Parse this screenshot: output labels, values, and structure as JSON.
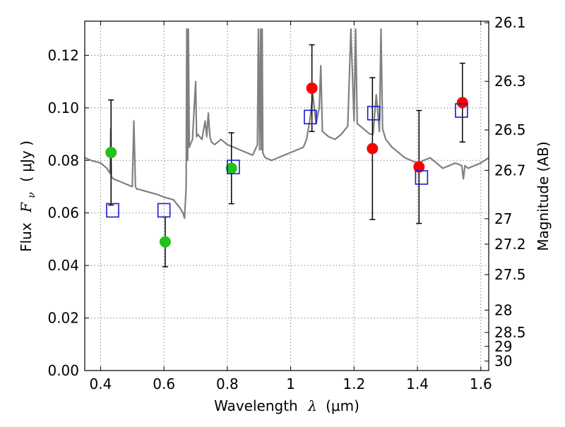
{
  "chart_data": {
    "type": "scatter",
    "xlabel_prefix": "Wavelength",
    "xlabel_symbol": "λ",
    "xlabel_unit": "(μm)",
    "ylabel_left_prefix": "Flux",
    "ylabel_left_symbol": "F",
    "ylabel_left_subscript": "ν",
    "ylabel_left_unit": "( μJy )",
    "ylabel_right": "Magnitude (AB)",
    "xlim": [
      0.35,
      1.625
    ],
    "ylim": [
      0.0,
      0.133
    ],
    "grid": true,
    "x_ticks": [
      0.4,
      0.6,
      0.8,
      1.0,
      1.2,
      1.4,
      1.6
    ],
    "x_tick_labels": [
      "0.4",
      "0.6",
      "0.8",
      "1",
      "1.2",
      "1.4",
      "1.6"
    ],
    "y_ticks": [
      0.0,
      0.02,
      0.04,
      0.06,
      0.08,
      0.1,
      0.12
    ],
    "y_tick_labels": [
      "0.00",
      "0.02",
      "0.04",
      "0.06",
      "0.08",
      "0.10",
      "0.12"
    ],
    "right_ticks": [
      {
        "label": "26.1",
        "flux": 0.1324
      },
      {
        "label": "26.3",
        "flux": 0.1101
      },
      {
        "label": "26.5",
        "flux": 0.0916
      },
      {
        "label": "26.7",
        "flux": 0.0762
      },
      {
        "label": "27",
        "flux": 0.0578
      },
      {
        "label": "27.2",
        "flux": 0.0481
      },
      {
        "label": "27.5",
        "flux": 0.0365
      },
      {
        "label": "28",
        "flux": 0.023
      },
      {
        "label": "28.5",
        "flux": 0.0145
      },
      {
        "label": "29",
        "flux": 0.0092
      },
      {
        "label": "30",
        "flux": 0.0036
      }
    ],
    "spectrum": {
      "color": "#808080",
      "x": [
        0.35,
        0.37,
        0.4,
        0.42,
        0.43,
        0.432,
        0.434,
        0.44,
        0.46,
        0.48,
        0.5,
        0.505,
        0.51,
        0.515,
        0.52,
        0.55,
        0.58,
        0.6,
        0.63,
        0.65,
        0.66,
        0.665,
        0.67,
        0.672,
        0.675,
        0.677,
        0.68,
        0.69,
        0.7,
        0.703,
        0.706,
        0.72,
        0.73,
        0.735,
        0.74,
        0.745,
        0.75,
        0.76,
        0.77,
        0.78,
        0.79,
        0.8,
        0.82,
        0.84,
        0.86,
        0.88,
        0.895,
        0.898,
        0.902,
        0.905,
        0.908,
        0.91,
        0.912,
        0.915,
        0.92,
        0.94,
        0.96,
        0.98,
        1.0,
        1.02,
        1.04,
        1.05,
        1.06,
        1.07,
        1.08,
        1.09,
        1.095,
        1.1,
        1.12,
        1.14,
        1.16,
        1.18,
        1.19,
        1.2,
        1.205,
        1.21,
        1.22,
        1.23,
        1.24,
        1.25,
        1.26,
        1.27,
        1.28,
        1.285,
        1.29,
        1.3,
        1.32,
        1.34,
        1.36,
        1.38,
        1.4,
        1.42,
        1.44,
        1.46,
        1.48,
        1.5,
        1.52,
        1.54,
        1.545,
        1.55,
        1.56,
        1.58,
        1.6,
        1.625
      ],
      "y": [
        0.081,
        0.08,
        0.079,
        0.077,
        0.075,
        0.092,
        0.074,
        0.073,
        0.072,
        0.071,
        0.07,
        0.095,
        0.07,
        0.069,
        0.069,
        0.068,
        0.067,
        0.066,
        0.065,
        0.062,
        0.06,
        0.058,
        0.07,
        0.13,
        0.08,
        0.13,
        0.085,
        0.088,
        0.11,
        0.089,
        0.09,
        0.088,
        0.095,
        0.089,
        0.098,
        0.089,
        0.087,
        0.086,
        0.087,
        0.088,
        0.087,
        0.086,
        0.085,
        0.084,
        0.083,
        0.082,
        0.086,
        0.13,
        0.084,
        0.13,
        0.084,
        0.13,
        0.083,
        0.082,
        0.081,
        0.08,
        0.081,
        0.082,
        0.083,
        0.084,
        0.085,
        0.088,
        0.095,
        0.105,
        0.094,
        0.1,
        0.116,
        0.091,
        0.089,
        0.088,
        0.09,
        0.093,
        0.13,
        0.095,
        0.13,
        0.094,
        0.093,
        0.092,
        0.091,
        0.09,
        0.09,
        0.105,
        0.091,
        0.13,
        0.092,
        0.088,
        0.085,
        0.083,
        0.081,
        0.08,
        0.079,
        0.08,
        0.081,
        0.079,
        0.077,
        0.078,
        0.079,
        0.078,
        0.073,
        0.078,
        0.077,
        0.078,
        0.079,
        0.081
      ]
    },
    "errorbar_points": [
      {
        "x": 0.433,
        "y": 0.083,
        "err": 0.02,
        "color": "#22c21a"
      },
      {
        "x": 0.604,
        "y": 0.049,
        "err": 0.0095,
        "color": "#22c21a"
      },
      {
        "x": 0.813,
        "y": 0.077,
        "err": 0.0135,
        "color": "#22c21a"
      },
      {
        "x": 1.067,
        "y": 0.1075,
        "err": 0.0165,
        "color": "#ff0000"
      },
      {
        "x": 1.258,
        "y": 0.0845,
        "err": 0.027,
        "color": "#ff0000"
      },
      {
        "x": 1.405,
        "y": 0.0775,
        "err": 0.0215,
        "color": "#ff0000"
      },
      {
        "x": 1.542,
        "y": 0.102,
        "err": 0.015,
        "color": "#ff0000"
      }
    ],
    "model_points": {
      "color": "#1a1acc",
      "points": [
        {
          "x": 0.438,
          "y": 0.061
        },
        {
          "x": 0.6,
          "y": 0.061
        },
        {
          "x": 0.819,
          "y": 0.0775
        },
        {
          "x": 1.062,
          "y": 0.0965
        },
        {
          "x": 1.262,
          "y": 0.098
        },
        {
          "x": 1.413,
          "y": 0.0735
        },
        {
          "x": 1.539,
          "y": 0.099
        }
      ]
    }
  }
}
